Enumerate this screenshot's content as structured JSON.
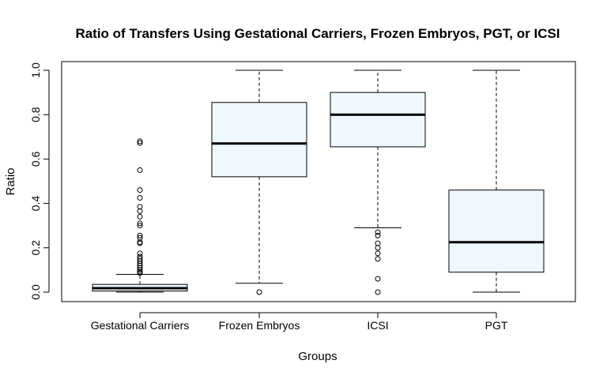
{
  "chart_data": {
    "type": "boxplot",
    "title": "Ratio of Transfers Using Gestational Carriers, Frozen Embryos, PGT, or ICSI",
    "xlabel": "Groups",
    "ylabel": "Ratio",
    "ylim": [
      0,
      1
    ],
    "yticks": [
      "0.0",
      "0.2",
      "0.4",
      "0.6",
      "0.8",
      "1.0"
    ],
    "grid": false,
    "box_color": "#F0F8FF",
    "groups": [
      {
        "name": "Gestational Carriers",
        "whisker_low": 0.0,
        "q1": 0.005,
        "median": 0.018,
        "q3": 0.035,
        "whisker_high": 0.08,
        "outliers": [
          0.68,
          0.672,
          0.55,
          0.46,
          0.425,
          0.385,
          0.365,
          0.34,
          0.31,
          0.3,
          0.255,
          0.245,
          0.225,
          0.22,
          0.175,
          0.16,
          0.15,
          0.14,
          0.13,
          0.12,
          0.11,
          0.1,
          0.092,
          0.086
        ]
      },
      {
        "name": "Frozen Embryos",
        "whisker_low": 0.04,
        "q1": 0.52,
        "median": 0.67,
        "q3": 0.855,
        "whisker_high": 1.0,
        "outliers": [
          0.0
        ]
      },
      {
        "name": "ICSI",
        "whisker_low": 0.29,
        "q1": 0.655,
        "median": 0.8,
        "q3": 0.9,
        "whisker_high": 1.0,
        "outliers": [
          0.27,
          0.255,
          0.22,
          0.2,
          0.175,
          0.15,
          0.06,
          0.0
        ]
      },
      {
        "name": "PGT",
        "whisker_low": 0.0,
        "q1": 0.09,
        "median": 0.225,
        "q3": 0.46,
        "whisker_high": 1.0,
        "outliers": []
      }
    ]
  }
}
